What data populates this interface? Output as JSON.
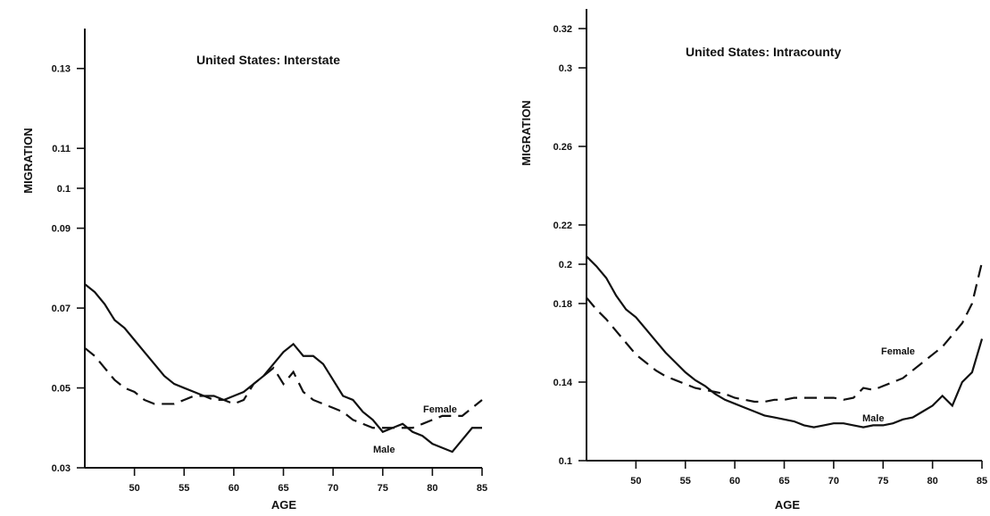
{
  "chart_data": [
    {
      "type": "line",
      "title": "United States: Interstate",
      "xlabel": "AGE",
      "ylabel": "MIGRATION",
      "x_ticks": [
        "50",
        "55",
        "60",
        "65",
        "70",
        "75",
        "80",
        "85"
      ],
      "y_ticks": [
        "0.03",
        "0.05",
        "0.07",
        "0.09",
        "0.1",
        "0.11",
        "0.13"
      ],
      "xlim": [
        45,
        85
      ],
      "ylim": [
        0.03,
        0.14
      ],
      "series": [
        {
          "name": "Male",
          "style": "solid",
          "points": [
            [
              45,
              0.076
            ],
            [
              46,
              0.074
            ],
            [
              47,
              0.071
            ],
            [
              48,
              0.067
            ],
            [
              49,
              0.065
            ],
            [
              50,
              0.062
            ],
            [
              51,
              0.059
            ],
            [
              52,
              0.056
            ],
            [
              53,
              0.053
            ],
            [
              54,
              0.051
            ],
            [
              55,
              0.05
            ],
            [
              56,
              0.049
            ],
            [
              57,
              0.048
            ],
            [
              58,
              0.048
            ],
            [
              59,
              0.047
            ],
            [
              60,
              0.048
            ],
            [
              61,
              0.049
            ],
            [
              62,
              0.051
            ],
            [
              63,
              0.053
            ],
            [
              64,
              0.056
            ],
            [
              65,
              0.059
            ],
            [
              66,
              0.061
            ],
            [
              67,
              0.058
            ],
            [
              68,
              0.058
            ],
            [
              69,
              0.056
            ],
            [
              70,
              0.052
            ],
            [
              71,
              0.048
            ],
            [
              72,
              0.047
            ],
            [
              73,
              0.044
            ],
            [
              74,
              0.042
            ],
            [
              75,
              0.039
            ],
            [
              76,
              0.04
            ],
            [
              77,
              0.041
            ],
            [
              78,
              0.039
            ],
            [
              79,
              0.038
            ],
            [
              80,
              0.036
            ],
            [
              81,
              0.035
            ],
            [
              82,
              0.034
            ],
            [
              83,
              0.037
            ],
            [
              84,
              0.04
            ],
            [
              85,
              0.04
            ]
          ]
        },
        {
          "name": "Female",
          "style": "dashed",
          "points": [
            [
              45,
              0.06
            ],
            [
              46,
              0.058
            ],
            [
              47,
              0.055
            ],
            [
              48,
              0.052
            ],
            [
              49,
              0.05
            ],
            [
              50,
              0.049
            ],
            [
              51,
              0.047
            ],
            [
              52,
              0.046
            ],
            [
              53,
              0.046
            ],
            [
              54,
              0.046
            ],
            [
              55,
              0.047
            ],
            [
              56,
              0.048
            ],
            [
              57,
              0.048
            ],
            [
              58,
              0.047
            ],
            [
              59,
              0.047
            ],
            [
              60,
              0.046
            ],
            [
              61,
              0.047
            ],
            [
              62,
              0.051
            ],
            [
              63,
              0.053
            ],
            [
              64,
              0.055
            ],
            [
              65,
              0.051
            ],
            [
              66,
              0.054
            ],
            [
              67,
              0.049
            ],
            [
              68,
              0.047
            ],
            [
              69,
              0.046
            ],
            [
              70,
              0.045
            ],
            [
              71,
              0.044
            ],
            [
              72,
              0.042
            ],
            [
              73,
              0.041
            ],
            [
              74,
              0.04
            ],
            [
              75,
              0.04
            ],
            [
              76,
              0.04
            ],
            [
              77,
              0.04
            ],
            [
              78,
              0.04
            ],
            [
              79,
              0.041
            ],
            [
              80,
              0.042
            ],
            [
              81,
              0.043
            ],
            [
              82,
              0.043
            ],
            [
              83,
              0.043
            ],
            [
              84,
              0.045
            ],
            [
              85,
              0.047
            ]
          ]
        }
      ]
    },
    {
      "type": "line",
      "title": "United States: Intracounty",
      "xlabel": "AGE",
      "ylabel": "MIGRATION",
      "x_ticks": [
        "50",
        "55",
        "60",
        "65",
        "70",
        "75",
        "80",
        "85"
      ],
      "y_ticks": [
        "0.1",
        "0.14",
        "0.18",
        "0.2",
        "0.22",
        "0.26",
        "0.3",
        "0.32"
      ],
      "xlim": [
        45,
        85
      ],
      "ylim": [
        0.1,
        0.33
      ],
      "series": [
        {
          "name": "Male",
          "style": "solid",
          "points": [
            [
              45,
              0.204
            ],
            [
              46,
              0.199
            ],
            [
              47,
              0.193
            ],
            [
              48,
              0.184
            ],
            [
              49,
              0.177
            ],
            [
              50,
              0.173
            ],
            [
              51,
              0.167
            ],
            [
              52,
              0.161
            ],
            [
              53,
              0.155
            ],
            [
              54,
              0.15
            ],
            [
              55,
              0.145
            ],
            [
              56,
              0.141
            ],
            [
              57,
              0.138
            ],
            [
              58,
              0.134
            ],
            [
              59,
              0.131
            ],
            [
              60,
              0.129
            ],
            [
              61,
              0.127
            ],
            [
              62,
              0.125
            ],
            [
              63,
              0.123
            ],
            [
              64,
              0.122
            ],
            [
              65,
              0.121
            ],
            [
              66,
              0.12
            ],
            [
              67,
              0.118
            ],
            [
              68,
              0.117
            ],
            [
              69,
              0.118
            ],
            [
              70,
              0.119
            ],
            [
              71,
              0.119
            ],
            [
              72,
              0.118
            ],
            [
              73,
              0.117
            ],
            [
              74,
              0.118
            ],
            [
              75,
              0.118
            ],
            [
              76,
              0.119
            ],
            [
              77,
              0.121
            ],
            [
              78,
              0.122
            ],
            [
              79,
              0.125
            ],
            [
              80,
              0.128
            ],
            [
              81,
              0.133
            ],
            [
              82,
              0.128
            ],
            [
              83,
              0.14
            ],
            [
              84,
              0.145
            ],
            [
              85,
              0.162
            ]
          ]
        },
        {
          "name": "Female",
          "style": "dashed",
          "points": [
            [
              45,
              0.183
            ],
            [
              46,
              0.177
            ],
            [
              47,
              0.172
            ],
            [
              48,
              0.166
            ],
            [
              49,
              0.16
            ],
            [
              50,
              0.154
            ],
            [
              51,
              0.15
            ],
            [
              52,
              0.146
            ],
            [
              53,
              0.143
            ],
            [
              54,
              0.141
            ],
            [
              55,
              0.139
            ],
            [
              56,
              0.137
            ],
            [
              57,
              0.136
            ],
            [
              58,
              0.135
            ],
            [
              59,
              0.134
            ],
            [
              60,
              0.132
            ],
            [
              61,
              0.131
            ],
            [
              62,
              0.13
            ],
            [
              63,
              0.13
            ],
            [
              64,
              0.131
            ],
            [
              65,
              0.131
            ],
            [
              66,
              0.132
            ],
            [
              67,
              0.132
            ],
            [
              68,
              0.132
            ],
            [
              69,
              0.132
            ],
            [
              70,
              0.132
            ],
            [
              71,
              0.131
            ],
            [
              72,
              0.132
            ],
            [
              73,
              0.137
            ],
            [
              74,
              0.136
            ],
            [
              75,
              0.138
            ],
            [
              76,
              0.14
            ],
            [
              77,
              0.142
            ],
            [
              78,
              0.146
            ],
            [
              79,
              0.15
            ],
            [
              80,
              0.154
            ],
            [
              81,
              0.158
            ],
            [
              82,
              0.164
            ],
            [
              83,
              0.17
            ],
            [
              84,
              0.18
            ],
            [
              85,
              0.201
            ]
          ]
        }
      ]
    }
  ]
}
